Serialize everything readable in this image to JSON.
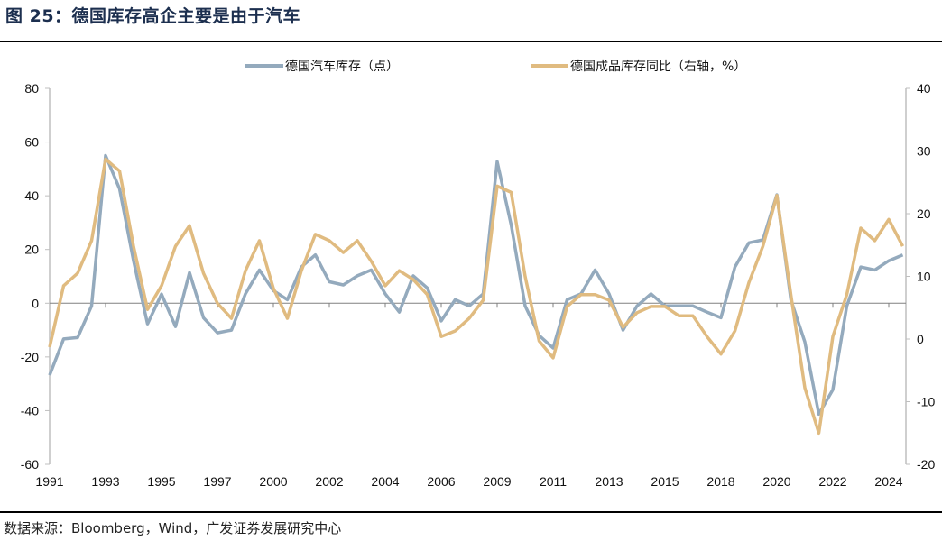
{
  "title": "图 25：德国库存高企主要是由于汽车",
  "source": "数据来源：Bloomberg，Wind，广发证券发展研究中心",
  "chart_data": {
    "type": "line",
    "title": "",
    "x_tick_labels": [
      "1991",
      "1993",
      "1995",
      "1997",
      "2000",
      "2002",
      "2004",
      "2006",
      "2009",
      "2011",
      "2013",
      "2015",
      "2018",
      "2020",
      "2022",
      "2024"
    ],
    "samples_per_tick_interval": 4,
    "left_axis": {
      "ylim": [
        -60,
        80
      ],
      "ticks": [
        "80",
        "60",
        "40",
        "20",
        "0",
        "-20",
        "-40",
        "-60"
      ]
    },
    "right_axis": {
      "ylim": [
        -20,
        40
      ],
      "ticks": [
        "40",
        "30",
        "20",
        "10",
        "0",
        "-10",
        "-20"
      ]
    },
    "grid": false,
    "legend_position": "top-center",
    "series": [
      {
        "name": "德国汽车库存（点）",
        "axis": "left",
        "color": "#94aabd",
        "values": [
          -26.8,
          -13.3,
          -12.8,
          -1,
          55,
          42.6,
          15.8,
          -7.7,
          3.4,
          -8.7,
          11.4,
          -5.4,
          -11,
          -10,
          3.5,
          12.4,
          4.7,
          1.3,
          13.5,
          18,
          8,
          6.8,
          10.2,
          12.4,
          3.5,
          -3.3,
          10.2,
          5.7,
          -6.6,
          1.3,
          -1,
          3.5,
          52.7,
          29.2,
          -1,
          -12,
          -16.7,
          1.3,
          3.5,
          12.4,
          3.5,
          -10,
          -1,
          3.5,
          -1,
          -1,
          -1,
          -3.3,
          -5.4,
          13.5,
          22.5,
          23.6,
          40.4,
          1.3,
          -14.4,
          -41.3,
          -32.2,
          -1,
          13.5,
          12.4,
          15.8,
          18
        ]
      },
      {
        "name": "德国成品库存同比（右轴，%）",
        "axis": "right",
        "color": "#e0bb80",
        "values": [
          -1.3,
          8.5,
          10.5,
          15.7,
          28.7,
          26.8,
          14.8,
          4.7,
          8.5,
          14.8,
          18.1,
          10.5,
          5.7,
          3.3,
          10.9,
          15.7,
          8.1,
          3.3,
          10.9,
          16.7,
          15.7,
          13.8,
          15.7,
          12.4,
          8.5,
          10.9,
          9.5,
          7.1,
          0.4,
          1.3,
          3.3,
          6.2,
          24.4,
          23.4,
          10,
          -0.3,
          -3,
          5.2,
          7.1,
          7.1,
          6.2,
          1.9,
          4.2,
          5.2,
          5.2,
          3.7,
          3.7,
          0.4,
          -2.4,
          1.3,
          9,
          14.8,
          22.9,
          7.1,
          -7.8,
          -15,
          0.4,
          7.1,
          17.7,
          15.7,
          19.1,
          14.8
        ]
      }
    ]
  }
}
